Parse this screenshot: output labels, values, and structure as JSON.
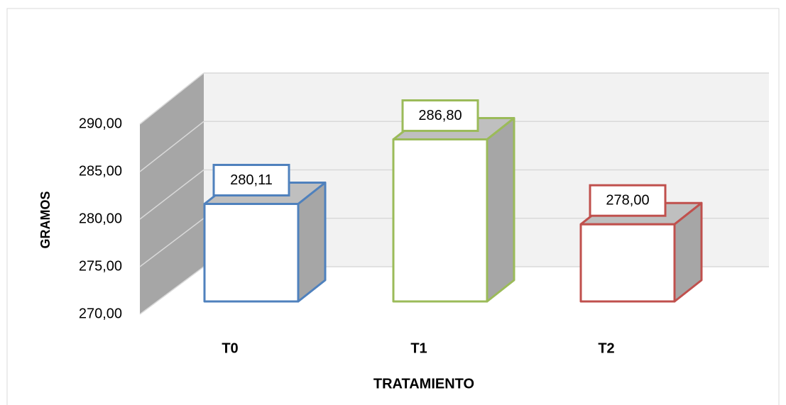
{
  "chart_data": {
    "type": "bar3d",
    "x_label": "TRATAMIENTO",
    "y_label": "GRAMOS",
    "categories": [
      "T0",
      "T1",
      "T2"
    ],
    "values": [
      280.11,
      286.8,
      278.0
    ],
    "value_labels": [
      "280,11",
      "286,80",
      "278,00"
    ],
    "colors": [
      "#4f81bd",
      "#9bbb59",
      "#c0504d"
    ],
    "ylim": [
      270,
      290
    ],
    "yticks": [
      {
        "value": 270,
        "label": "270,00"
      },
      {
        "value": 275,
        "label": "275,00"
      },
      {
        "value": 280,
        "label": "280,00"
      },
      {
        "value": 285,
        "label": "285,00"
      },
      {
        "value": 290,
        "label": "290,00"
      }
    ],
    "grid": true
  }
}
